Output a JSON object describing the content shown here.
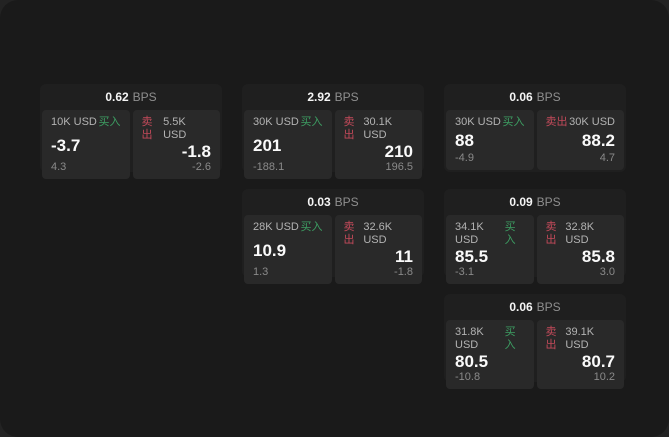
{
  "page": {
    "bps_suffix": "BPS",
    "buy_label": "买入",
    "sell_label": "卖出"
  },
  "colors": {
    "outer_bg": "#232323",
    "panel_bg": "#1a1a1a",
    "card_bg": "#1f1f1f",
    "tile_bg": "#292929",
    "buy_green": "#3d9f63",
    "sell_red": "#c34a5a",
    "value_white": "#fafafa",
    "muted_gray": "#8a8a8a"
  },
  "cards": [
    {
      "bps": "0.62",
      "buy": {
        "amount": "10K USD",
        "value": "-3.7",
        "delta": "4.3"
      },
      "sell": {
        "amount": "5.5K USD",
        "value": "-1.8",
        "delta": "-2.6"
      }
    },
    {
      "bps": "2.92",
      "buy": {
        "amount": "30K USD",
        "value": "201",
        "delta": "-188.1"
      },
      "sell": {
        "amount": "30.1K USD",
        "value": "210",
        "delta": "196.5"
      }
    },
    {
      "bps": "0.06",
      "buy": {
        "amount": "30K USD",
        "value": "88",
        "delta": "-4.9"
      },
      "sell": {
        "amount": "30K USD",
        "value": "88.2",
        "delta": "4.7"
      }
    },
    {
      "bps": "0.03",
      "buy": {
        "amount": "28K USD",
        "value": "10.9",
        "delta": "1.3"
      },
      "sell": {
        "amount": "32.6K USD",
        "value": "11",
        "delta": "-1.8"
      }
    },
    {
      "bps": "0.09",
      "buy": {
        "amount": "34.1K USD",
        "value": "85.5",
        "delta": "-3.1"
      },
      "sell": {
        "amount": "32.8K USD",
        "value": "85.8",
        "delta": "3.0"
      }
    },
    {
      "bps": "0.06",
      "buy": {
        "amount": "31.8K USD",
        "value": "80.5",
        "delta": "-10.8"
      },
      "sell": {
        "amount": "39.1K USD",
        "value": "80.7",
        "delta": "10.2"
      }
    }
  ]
}
